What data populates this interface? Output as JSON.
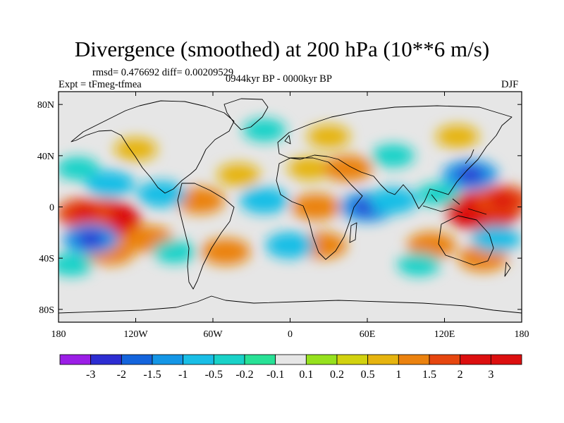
{
  "chart_data": {
    "type": "heatmap",
    "title": "Divergence (smoothed) at 200 hPa (10**6 m/s)",
    "stats_line": "rmsd= 0.476692 diff= 0.00209529",
    "experiment_label": "Expt = tFmeg-tfmea",
    "period_label": "0944kyr BP - 0000kyr BP",
    "season_label": "DJF",
    "x_axis": {
      "range": [
        -180,
        180
      ],
      "ticks": [
        {
          "value": -180,
          "label": "180"
        },
        {
          "value": -120,
          "label": "120W"
        },
        {
          "value": -60,
          "label": "60W"
        },
        {
          "value": 0,
          "label": "0"
        },
        {
          "value": 60,
          "label": "60E"
        },
        {
          "value": 120,
          "label": "120E"
        },
        {
          "value": 180,
          "label": "180"
        }
      ]
    },
    "y_axis": {
      "range": [
        -90,
        90
      ],
      "ticks": [
        {
          "value": 80,
          "label": "80N"
        },
        {
          "value": 40,
          "label": "40N"
        },
        {
          "value": 0,
          "label": "0"
        },
        {
          "value": -40,
          "label": "40S"
        },
        {
          "value": -80,
          "label": "80S"
        }
      ]
    },
    "colorbar": {
      "levels": [
        "-3",
        "-2",
        "-1.5",
        "-1",
        "-0.5",
        "-0.2",
        "-0.1",
        "0.1",
        "0.2",
        "0.5",
        "1",
        "1.5",
        "2",
        "3"
      ],
      "colors": [
        "#9b1ee6",
        "#2d2dd2",
        "#1464dc",
        "#1496e6",
        "#19bee6",
        "#19d2c8",
        "#28e196",
        "#e6e6e6",
        "#96e11e",
        "#d2d20f",
        "#e6b40f",
        "#eb820f",
        "#e6460f",
        "#dc0f0f",
        "#dc0f0f"
      ]
    },
    "field_features": [
      {
        "lon": -145,
        "lat": -10,
        "value": 3
      },
      {
        "lon": -160,
        "lat": -5,
        "value": 1.5
      },
      {
        "lon": -110,
        "lat": -25,
        "value": 1
      },
      {
        "lon": -140,
        "lat": -35,
        "value": 1
      },
      {
        "lon": -70,
        "lat": 5,
        "value": 1
      },
      {
        "lon": -40,
        "lat": 25,
        "value": 0.5
      },
      {
        "lon": -50,
        "lat": -35,
        "value": 1
      },
      {
        "lon": 15,
        "lat": 30,
        "value": 0.5
      },
      {
        "lon": 20,
        "lat": 0,
        "value": 1
      },
      {
        "lon": 25,
        "lat": -30,
        "value": 1
      },
      {
        "lon": 45,
        "lat": 30,
        "value": 1
      },
      {
        "lon": 150,
        "lat": -3,
        "value": 3
      },
      {
        "lon": 165,
        "lat": 5,
        "value": 1.5
      },
      {
        "lon": 110,
        "lat": -30,
        "value": 1
      },
      {
        "lon": 150,
        "lat": -40,
        "value": 1
      },
      {
        "lon": 130,
        "lat": 55,
        "value": 0.5
      },
      {
        "lon": -140,
        "lat": 18,
        "value": -1
      },
      {
        "lon": -155,
        "lat": -25,
        "value": -1.5
      },
      {
        "lon": -100,
        "lat": 10,
        "value": -1
      },
      {
        "lon": -20,
        "lat": 5,
        "value": -1
      },
      {
        "lon": 60,
        "lat": 0,
        "value": -1.5
      },
      {
        "lon": 80,
        "lat": 5,
        "value": -1
      },
      {
        "lon": 140,
        "lat": 25,
        "value": -1.5
      },
      {
        "lon": 115,
        "lat": 10,
        "value": -0.5
      },
      {
        "lon": 160,
        "lat": -25,
        "value": -1
      },
      {
        "lon": -165,
        "lat": 30,
        "value": -0.5
      },
      {
        "lon": -90,
        "lat": -35,
        "value": -0.5
      },
      {
        "lon": 0,
        "lat": -30,
        "value": -1
      },
      {
        "lon": 100,
        "lat": -45,
        "value": -0.5
      },
      {
        "lon": -20,
        "lat": 60,
        "value": -0.5
      },
      {
        "lon": 80,
        "lat": 40,
        "value": -0.5
      },
      {
        "lon": -170,
        "lat": -45,
        "value": -0.5
      },
      {
        "lon": -120,
        "lat": 45,
        "value": 0.5
      },
      {
        "lon": 30,
        "lat": 55,
        "value": 0.5
      }
    ]
  }
}
